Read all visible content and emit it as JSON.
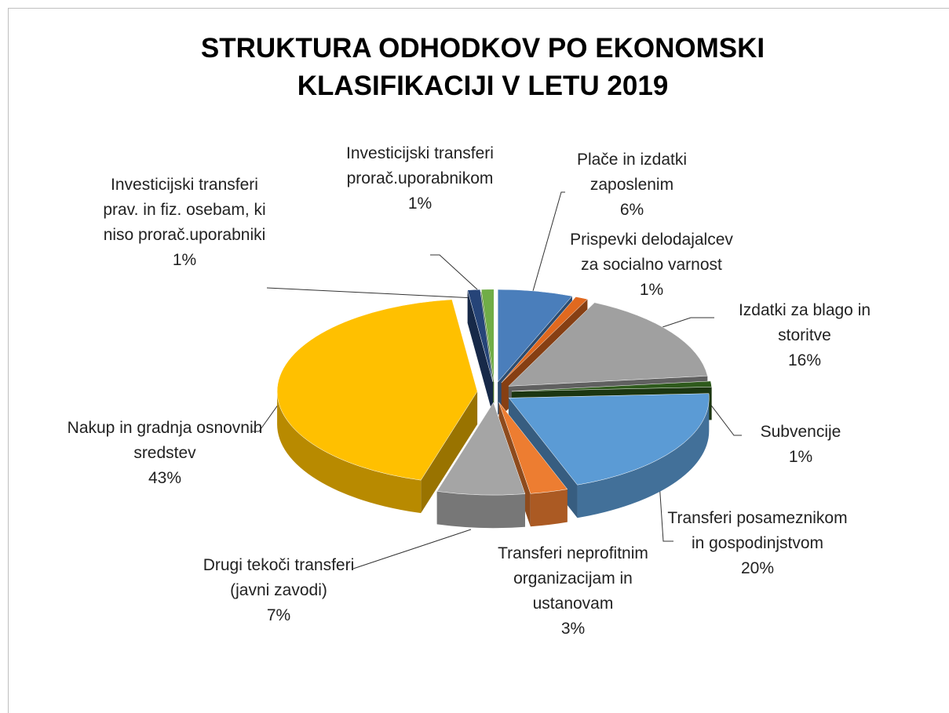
{
  "chart_data": {
    "type": "pie",
    "title": "STRUKTURA ODHODKOV PO EKONOMSKI KLASIFIKACIJI V LETU 2019",
    "categories": [
      "Plače in izdatki zaposlenim",
      "Prispevki delodajalcev za socialno varnost",
      "Izdatki za blago in storitve",
      "Subvencije",
      "Transferi posameznikom in gospodinjstvom",
      "Transferi neprofitnim organizacijam in ustanovam",
      "Drugi tekoči transferi (javni zavodi)",
      "Nakup in gradnja osnovnih sredstev",
      "Investicijski transferi prav. in fiz. osebam, ki niso prorač.uporabniki",
      "Investicijski transferi prorač.uporabnikom"
    ],
    "values": [
      6,
      1,
      16,
      1,
      20,
      3,
      7,
      43,
      1,
      1
    ],
    "value_labels": [
      "6%",
      "1%",
      "16%",
      "1%",
      "20%",
      "3%",
      "7%",
      "43%",
      "1%",
      "1%"
    ],
    "colors": [
      "#4a7ebb",
      "#e0691f",
      "#a0a0a0",
      "#2e5a1c",
      "#5b9bd5",
      "#ed7d31",
      "#a5a5a5",
      "#ffc000",
      "#264478",
      "#70ad47"
    ]
  }
}
